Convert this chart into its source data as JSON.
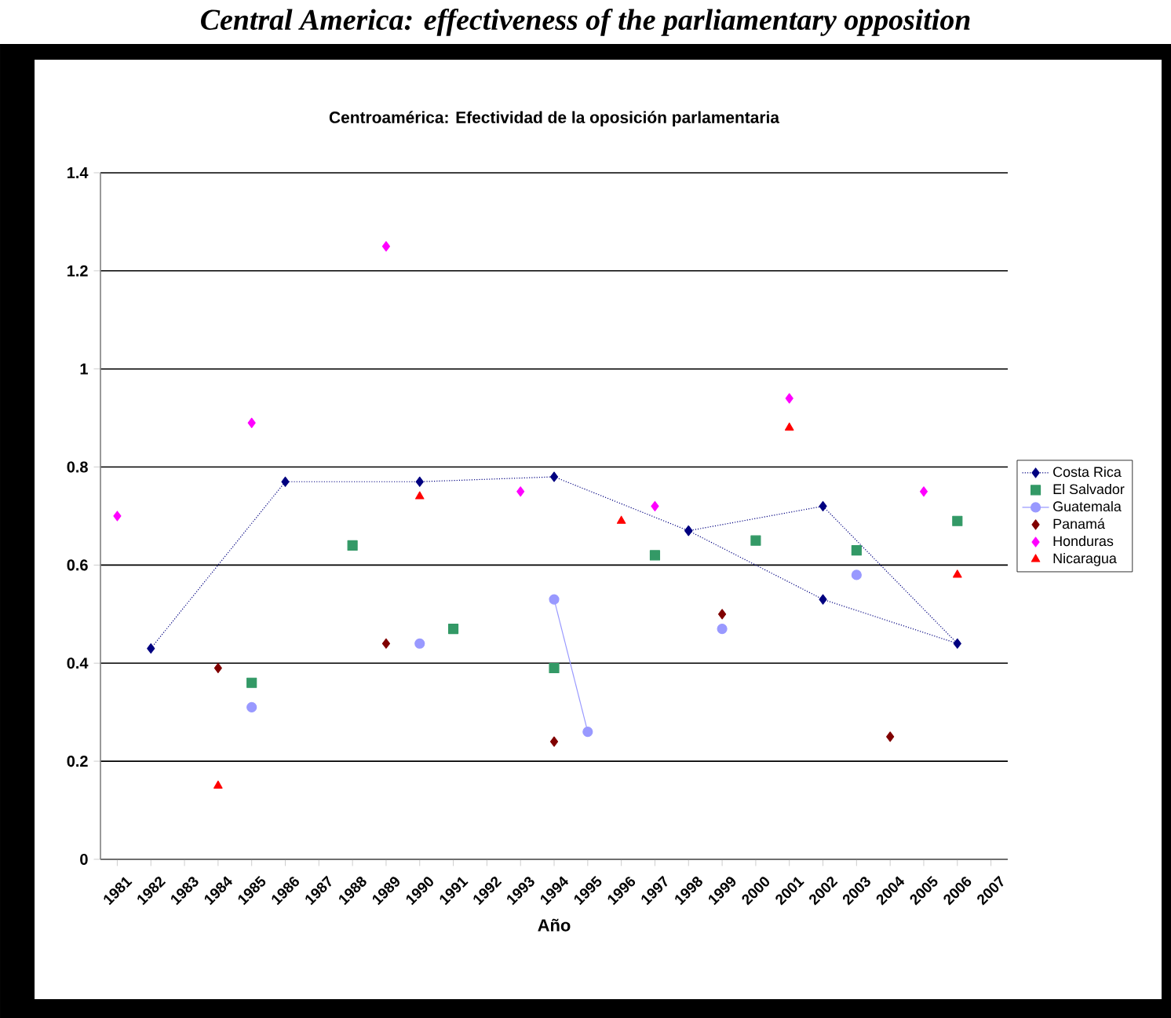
{
  "chart_data": {
    "type": "line",
    "title": "Centroamérica: Efectividad de la oposición parlamentaria",
    "xlabel": "Año",
    "annotations": [
      "Central America: effectiveness of the parliamentary opposition"
    ],
    "x": [
      1981,
      1982,
      1983,
      1984,
      1985,
      1986,
      1987,
      1988,
      1989,
      1990,
      1991,
      1992,
      1993,
      1994,
      1995,
      1996,
      1997,
      1998,
      1999,
      2000,
      2001,
      2002,
      2003,
      2004,
      2005,
      2006
    ],
    "xlim": [
      1980.5,
      2007.5
    ],
    "xticks": [
      1981,
      1982,
      1983,
      1984,
      1985,
      1986,
      1987,
      1988,
      1989,
      1990,
      1991,
      1992,
      1993,
      1994,
      1995,
      1996,
      1997,
      1998,
      1999,
      2000,
      2001,
      2002,
      2003,
      2004,
      2005,
      2006,
      2007
    ],
    "ylim": [
      0,
      1.4
    ],
    "yticks": [
      0,
      0.2,
      0.4,
      0.6,
      0.8,
      1,
      1.2,
      1.4
    ],
    "grid": "y",
    "legend": "right",
    "series": [
      {
        "name": "Costa Rica",
        "color": "#000080",
        "marker": "diamond",
        "line_style": "dotted",
        "x": [
          1982,
          1986,
          1990,
          1994,
          1998,
          2002,
          2006,
          2002,
          1998
        ],
        "values": [
          0.43,
          0.77,
          0.77,
          0.78,
          0.67,
          0.53,
          0.44,
          0.72,
          0.67
        ]
      },
      {
        "name": "El Salvador",
        "color": "#339966",
        "marker": "square",
        "type": "scatter",
        "values": [
          null,
          null,
          null,
          null,
          0.36,
          null,
          null,
          0.64,
          null,
          null,
          0.47,
          null,
          null,
          0.39,
          null,
          null,
          0.62,
          null,
          null,
          0.65,
          null,
          null,
          0.63,
          null,
          null,
          0.69
        ]
      },
      {
        "name": "Guatemala",
        "color": "#9999ff",
        "marker": "circle",
        "line_style": "solid",
        "values": [
          null,
          null,
          null,
          null,
          0.31,
          null,
          null,
          null,
          null,
          0.44,
          null,
          null,
          null,
          0.53,
          0.26,
          null,
          null,
          null,
          0.47,
          null,
          null,
          null,
          0.58,
          null,
          null,
          null
        ]
      },
      {
        "name": "Panamá",
        "color": "#800000",
        "marker": "diamond",
        "type": "scatter",
        "values": [
          null,
          null,
          null,
          0.39,
          null,
          null,
          null,
          null,
          0.44,
          null,
          null,
          null,
          null,
          0.24,
          null,
          null,
          null,
          null,
          0.5,
          null,
          null,
          null,
          null,
          0.25,
          null,
          null
        ]
      },
      {
        "name": "Honduras",
        "color": "#ff00ff",
        "marker": "diamond",
        "type": "scatter",
        "values": [
          0.7,
          null,
          null,
          null,
          0.89,
          null,
          null,
          null,
          1.25,
          null,
          null,
          null,
          0.75,
          null,
          null,
          null,
          0.72,
          null,
          null,
          null,
          0.94,
          null,
          null,
          null,
          0.75,
          null
        ]
      },
      {
        "name": "Nicaragua",
        "color": "#ff0000",
        "marker": "triangle",
        "type": "scatter",
        "values": [
          null,
          null,
          null,
          0.15,
          null,
          null,
          null,
          null,
          null,
          0.74,
          null,
          null,
          null,
          null,
          null,
          0.69,
          null,
          null,
          null,
          null,
          0.88,
          null,
          null,
          null,
          null,
          0.58
        ]
      }
    ]
  }
}
